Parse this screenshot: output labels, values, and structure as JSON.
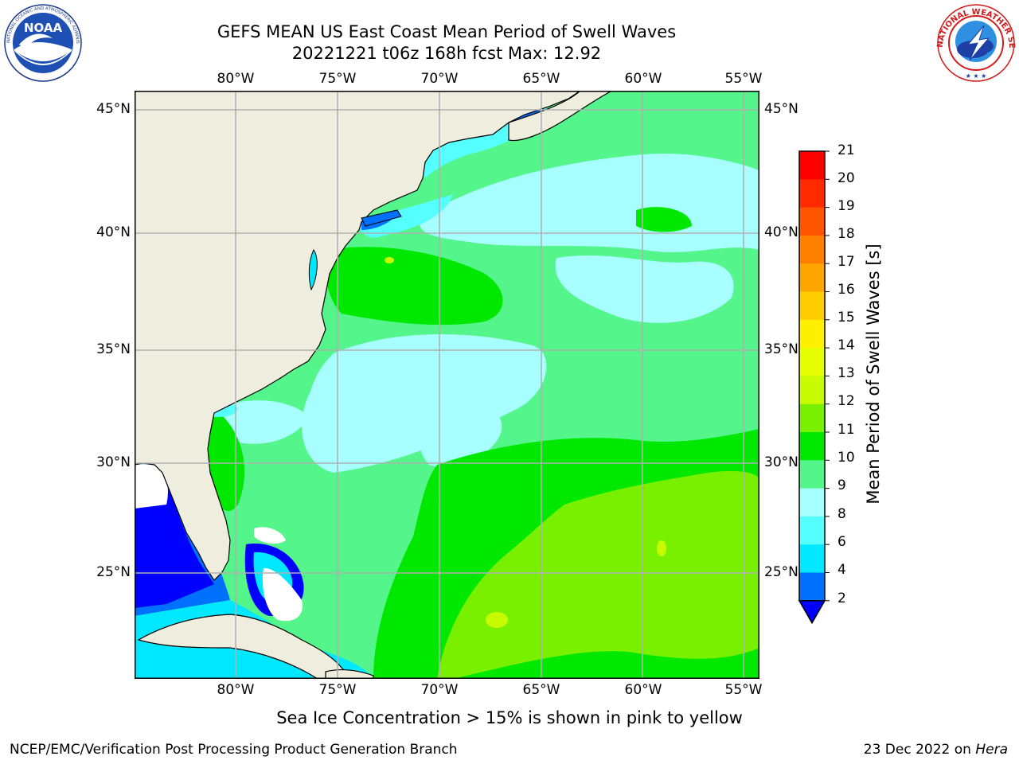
{
  "header": {
    "title_line1": "GEFS MEAN US East Coast Mean Period of Swell Waves",
    "title_line2": "20221221 t06z 168h fcst   Max: 12.92"
  },
  "logos": {
    "left": {
      "name": "NOAA",
      "text": "NOAA",
      "ring_text": "NATIONAL OCEANIC AND ATMOSPHERIC ADMINISTRATION · U.S. DEPARTMENT OF COMMERCE"
    },
    "right": {
      "name": "National Weather Service",
      "ring_text": "NATIONAL WEATHER SERVICE"
    }
  },
  "map": {
    "lon_ticks": [
      "80°W",
      "75°W",
      "70°W",
      "65°W",
      "60°W",
      "55°W"
    ],
    "lat_ticks": [
      "45°N",
      "40°N",
      "35°N",
      "30°N",
      "25°N"
    ],
    "colors": {
      "land": "#efedde",
      "ocean_default": "#54f58a",
      "coast": "#000000",
      "grid": "#b0b0b0"
    }
  },
  "colorbar": {
    "title": "Mean Period of Swell Waves [s]",
    "labels": [
      "21",
      "20",
      "19",
      "18",
      "17",
      "16",
      "15",
      "14",
      "13",
      "12",
      "11",
      "10",
      "9",
      "8",
      "6",
      "4",
      "2"
    ],
    "colors": [
      "#ff0000",
      "#ff2a00",
      "#ff5500",
      "#ff7f00",
      "#ffa500",
      "#ffcc00",
      "#fff000",
      "#e6ff00",
      "#c8fb00",
      "#78f000",
      "#00e800",
      "#54f58a",
      "#a8ffff",
      "#55ffff",
      "#00e8ff",
      "#0070ff"
    ],
    "extend_color": "#0000ff"
  },
  "note": "Sea Ice Concentration > 15% is shown in pink to yellow",
  "footer": {
    "left": "NCEP/EMC/Verification Post Processing Product Generation Branch",
    "right_date": "23 Dec 2022 on ",
    "right_system": "Hera"
  }
}
